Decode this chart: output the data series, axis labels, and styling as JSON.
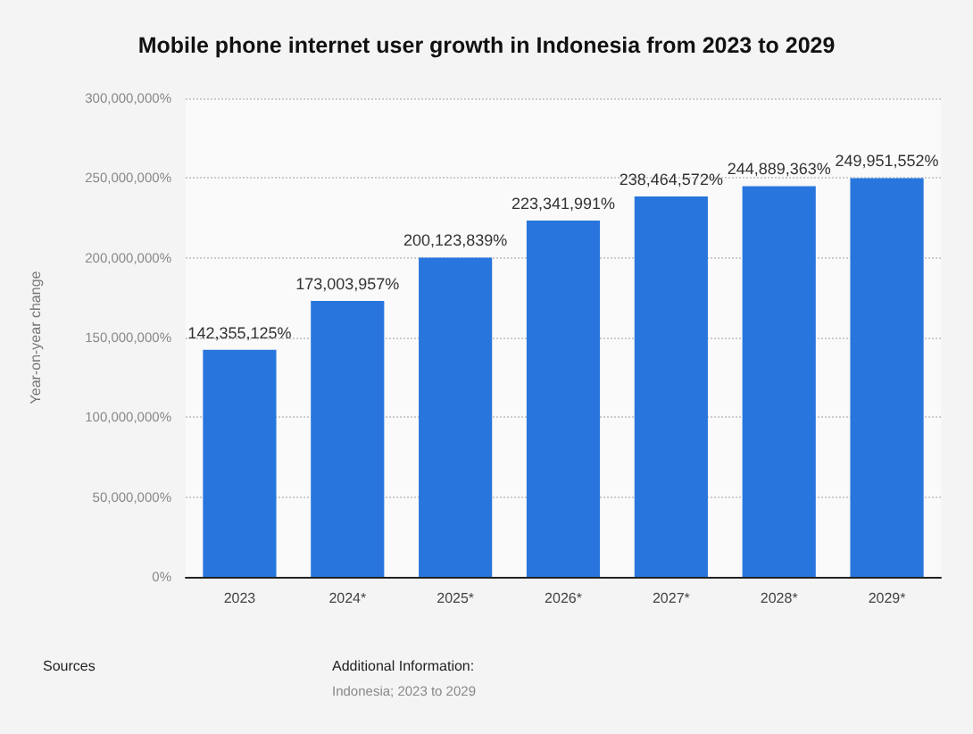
{
  "chart_data": {
    "type": "bar",
    "title": "Mobile phone internet user growth in Indonesia from 2023 to 2029",
    "ylabel": "Year-on-year change",
    "categories": [
      "2023",
      "2024*",
      "2025*",
      "2026*",
      "2027*",
      "2028*",
      "2029*"
    ],
    "values": [
      142355125,
      173003957,
      200123839,
      223341991,
      238464572,
      244889363,
      249951552
    ],
    "value_labels": [
      "142,355,125%",
      "173,003,957%",
      "200,123,839%",
      "223,341,991%",
      "238,464,572%",
      "244,889,363%",
      "249,951,552%"
    ],
    "color": "#2876dd",
    "ylim": [
      0,
      300000000
    ],
    "yticks": [
      {
        "value": 0,
        "label": "0%"
      },
      {
        "value": 50000000,
        "label": "50,000,000%"
      },
      {
        "value": 100000000,
        "label": "100,000,000%"
      },
      {
        "value": 150000000,
        "label": "150,000,000%"
      },
      {
        "value": 200000000,
        "label": "200,000,000%"
      },
      {
        "value": 250000000,
        "label": "250,000,000%"
      },
      {
        "value": 300000000,
        "label": "300,000,000%"
      }
    ],
    "grid": "y",
    "annotations": [
      "Sources",
      "Additional Information:",
      "Indonesia; 2023 to 2029"
    ]
  }
}
